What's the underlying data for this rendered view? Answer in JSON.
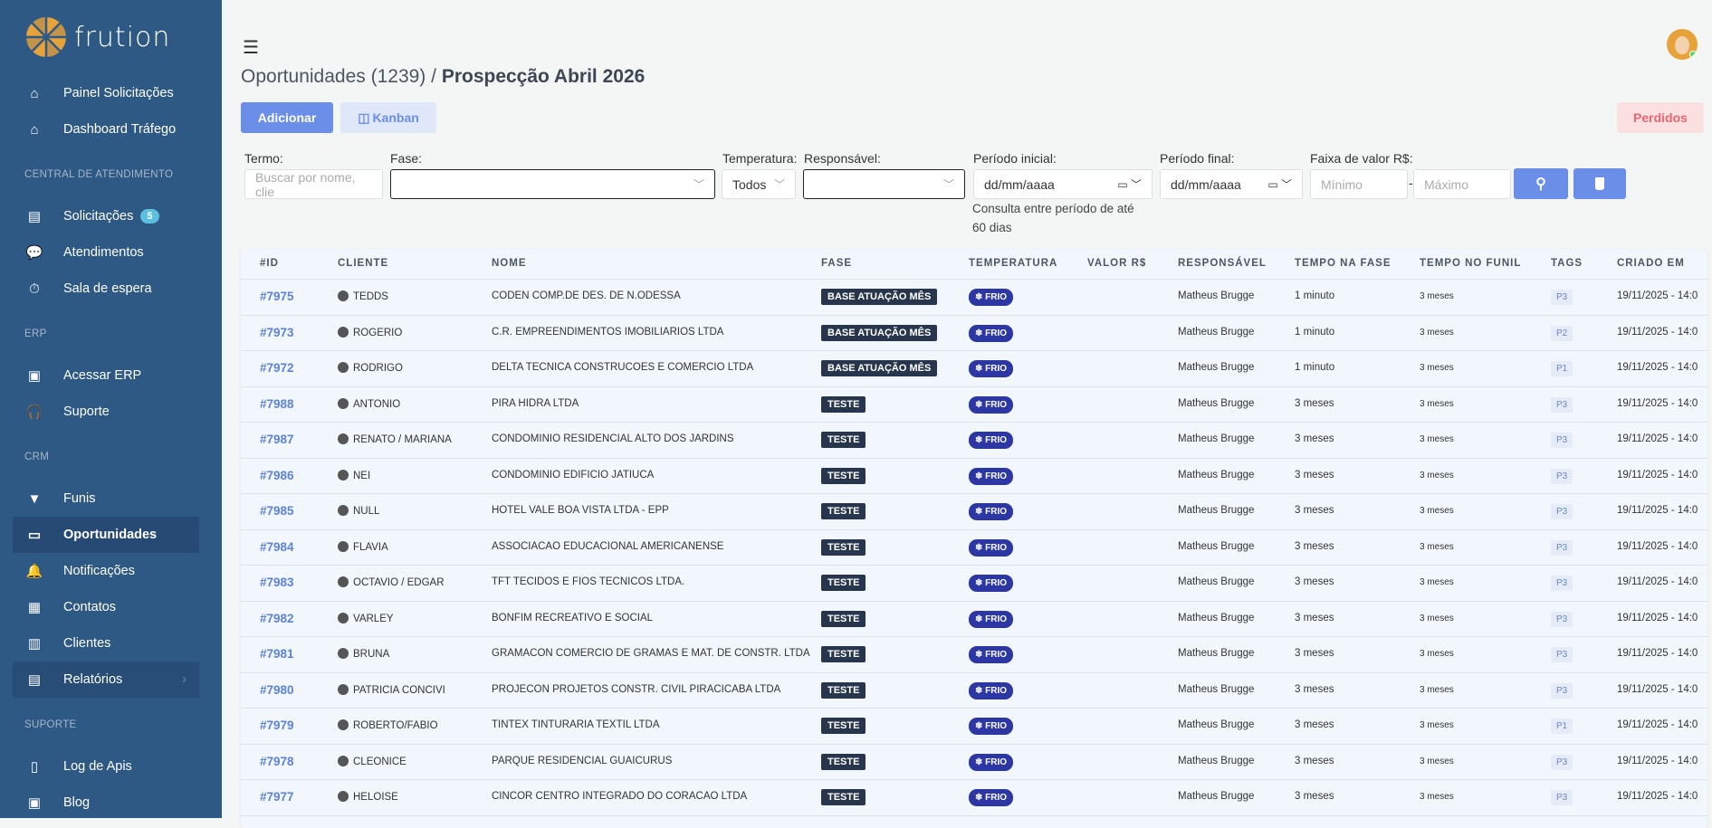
{
  "brand": {
    "name": "frution",
    "logo_color": "#e8a23a"
  },
  "sidebar": {
    "items": [
      {
        "type": "item",
        "label": "Painel Solicitações",
        "icon": "home-icon",
        "glyph": "⌂"
      },
      {
        "type": "item",
        "label": "Dashboard Tráfego",
        "icon": "home-icon",
        "glyph": "⌂"
      },
      {
        "type": "head",
        "label": "CENTRAL DE ATENDIMENTO"
      },
      {
        "type": "item",
        "label": "Solicitações",
        "icon": "book-icon",
        "glyph": "▤",
        "badge": "5"
      },
      {
        "type": "item",
        "label": "Atendimentos",
        "icon": "chat-icon",
        "glyph": "💬"
      },
      {
        "type": "item",
        "label": "Sala de espera",
        "icon": "stopwatch-icon",
        "glyph": "⏱"
      },
      {
        "type": "head",
        "label": "ERP"
      },
      {
        "type": "item",
        "label": "Acessar ERP",
        "icon": "chart-icon",
        "glyph": "▣"
      },
      {
        "type": "item",
        "label": "Suporte",
        "icon": "headset-icon",
        "glyph": "🎧"
      },
      {
        "type": "head",
        "label": "CRM"
      },
      {
        "type": "item",
        "label": "Funis",
        "icon": "funnel-icon",
        "glyph": "▼"
      },
      {
        "type": "item",
        "label": "Oportunidades",
        "icon": "money-icon",
        "glyph": "▭",
        "active": true
      },
      {
        "type": "item",
        "label": "Notificações",
        "icon": "bell-icon",
        "glyph": "🔔"
      },
      {
        "type": "item",
        "label": "Contatos",
        "icon": "contact-icon",
        "glyph": "▦"
      },
      {
        "type": "item",
        "label": "Clientes",
        "icon": "building-icon",
        "glyph": "▥"
      },
      {
        "type": "item",
        "label": "Relatórios",
        "icon": "report-icon",
        "glyph": "▤",
        "submenu": true
      },
      {
        "type": "head",
        "label": "SUPORTE"
      },
      {
        "type": "item",
        "label": "Log de Apis",
        "icon": "file-icon",
        "glyph": "▯"
      },
      {
        "type": "item",
        "label": "Blog",
        "icon": "newspaper-icon",
        "glyph": "▣"
      }
    ]
  },
  "header": {
    "title_prefix": "Oportunidades (1239) / ",
    "title_bold": "Prospecção Abril 2026"
  },
  "toolbar": {
    "add": "Adicionar",
    "kanban": "Kanban",
    "lost": "Perdidos"
  },
  "filters": {
    "termo_label": "Termo:",
    "termo_placeholder": "Buscar por nome, clie",
    "fase_label": "Fase:",
    "temp_label": "Temperatura:",
    "temp_value": "Todos",
    "resp_label": "Responsável:",
    "ini_label": "Período inicial:",
    "ini_value": "dd/mm/aaaa",
    "fim_label": "Período final:",
    "fim_value": "dd/mm/aaaa",
    "valor_label": "Faixa de valor R$:",
    "min_placeholder": "Mínimo",
    "max_placeholder": "Máximo",
    "sep": "-",
    "note1": "Consulta entre período de até",
    "note2": "60 dias"
  },
  "colors": {
    "sidebar": "#2e5984",
    "primary": "#6b8fe8",
    "fase": "#27364d",
    "frio": "#2d37a3"
  },
  "table": {
    "columns": [
      "#ID",
      "CLIENTE",
      "NOME",
      "FASE",
      "TEMPERATURA",
      "VALOR R$",
      "RESPONSÁVEL",
      "TEMPO NA FASE",
      "TEMPO NO FUNIL",
      "TAGS",
      "CRIADO EM"
    ],
    "rows": [
      [
        "#7975",
        "TEDDS",
        "CODEN COMP.DE DES. DE N.ODESSA",
        "BASE ATUAÇÃO MÊS",
        "FRIO",
        "",
        "Matheus Brugge",
        "1 minuto",
        "3 meses",
        "P3",
        "19/11/2025 - 14:0"
      ],
      [
        "#7973",
        "ROGERIO",
        "C.R. EMPREENDIMENTOS IMOBILIARIOS LTDA",
        "BASE ATUAÇÃO MÊS",
        "FRIO",
        "",
        "Matheus Brugge",
        "1 minuto",
        "3 meses",
        "P2",
        "19/11/2025 - 14:0"
      ],
      [
        "#7972",
        "RODRIGO",
        "DELTA TECNICA CONSTRUCOES E COMERCIO LTDA",
        "BASE ATUAÇÃO MÊS",
        "FRIO",
        "",
        "Matheus Brugge",
        "1 minuto",
        "3 meses",
        "P1",
        "19/11/2025 - 14:0"
      ],
      [
        "#7988",
        "ANTONIO",
        "PIRA HIDRA LTDA",
        "TESTE",
        "FRIO",
        "",
        "Matheus Brugge",
        "3 meses",
        "3 meses",
        "P3",
        "19/11/2025 - 14:0"
      ],
      [
        "#7987",
        "RENATO / MARIANA",
        "CONDOMINIO RESIDENCIAL ALTO DOS JARDINS",
        "TESTE",
        "FRIO",
        "",
        "Matheus Brugge",
        "3 meses",
        "3 meses",
        "P3",
        "19/11/2025 - 14:0"
      ],
      [
        "#7986",
        "NEI",
        "CONDOMINIO EDIFICIO JATIUCA",
        "TESTE",
        "FRIO",
        "",
        "Matheus Brugge",
        "3 meses",
        "3 meses",
        "P3",
        "19/11/2025 - 14:0"
      ],
      [
        "#7985",
        "NULL",
        "HOTEL VALE BOA VISTA LTDA - EPP",
        "TESTE",
        "FRIO",
        "",
        "Matheus Brugge",
        "3 meses",
        "3 meses",
        "P3",
        "19/11/2025 - 14:0"
      ],
      [
        "#7984",
        "FLAVIA",
        "ASSOCIACAO EDUCACIONAL AMERICANENSE",
        "TESTE",
        "FRIO",
        "",
        "Matheus Brugge",
        "3 meses",
        "3 meses",
        "P3",
        "19/11/2025 - 14:0"
      ],
      [
        "#7983",
        "OCTAVIO / EDGAR",
        "TFT TECIDOS E FIOS TECNICOS LTDA.",
        "TESTE",
        "FRIO",
        "",
        "Matheus Brugge",
        "3 meses",
        "3 meses",
        "P3",
        "19/11/2025 - 14:0"
      ],
      [
        "#7982",
        "VARLEY",
        "BONFIM RECREATIVO E SOCIAL",
        "TESTE",
        "FRIO",
        "",
        "Matheus Brugge",
        "3 meses",
        "3 meses",
        "P3",
        "19/11/2025 - 14:0"
      ],
      [
        "#7981",
        "BRUNA",
        "GRAMACON COMERCIO DE GRAMAS E MAT. DE CONSTR. LTDA",
        "TESTE",
        "FRIO",
        "",
        "Matheus Brugge",
        "3 meses",
        "3 meses",
        "P3",
        "19/11/2025 - 14:0"
      ],
      [
        "#7980",
        "PATRICIA CONCIVI",
        "PROJECON PROJETOS CONSTR. CIVIL PIRACICABA LTDA",
        "TESTE",
        "FRIO",
        "",
        "Matheus Brugge",
        "3 meses",
        "3 meses",
        "P3",
        "19/11/2025 - 14:0"
      ],
      [
        "#7979",
        "ROBERTO/FABIO",
        "TINTEX TINTURARIA TEXTIL LTDA",
        "TESTE",
        "FRIO",
        "",
        "Matheus Brugge",
        "3 meses",
        "3 meses",
        "P1",
        "19/11/2025 - 14:0"
      ],
      [
        "#7978",
        "CLEONICE",
        "PARQUE RESIDENCIAL GUAICURUS",
        "TESTE",
        "FRIO",
        "",
        "Matheus Brugge",
        "3 meses",
        "3 meses",
        "P3",
        "19/11/2025 - 14:0"
      ],
      [
        "#7977",
        "HELOISE",
        "CINCOR CENTRO INTEGRADO DO CORACAO LTDA",
        "TESTE",
        "FRIO",
        "",
        "Matheus Brugge",
        "3 meses",
        "3 meses",
        "P3",
        "19/11/2025 - 14:0"
      ]
    ]
  }
}
